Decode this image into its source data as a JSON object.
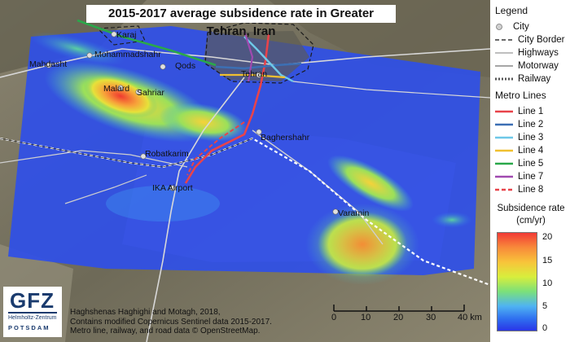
{
  "title": "2015-2017 average subsidence rate in Greater Tehran, Iran",
  "legend": {
    "heading": "Legend",
    "items": [
      "City",
      "City Border",
      "Highways",
      "Motorway",
      "Railway"
    ],
    "metro_heading": "Metro Lines",
    "metro_lines": [
      {
        "name": "Line 1",
        "color": "#e8434a"
      },
      {
        "name": "Line 2",
        "color": "#3c6fb4"
      },
      {
        "name": "Line 3",
        "color": "#6ec8e8"
      },
      {
        "name": "Line 4",
        "color": "#f0c030"
      },
      {
        "name": "Line 5",
        "color": "#2aa84a"
      },
      {
        "name": "Line 7",
        "color": "#a04ab0"
      },
      {
        "name": "Line 8",
        "color": "#e8434a"
      }
    ]
  },
  "subsidence": {
    "title_1": "Subsidence rate",
    "title_2": "(cm/yr)",
    "ticks": [
      "20",
      "15",
      "10",
      "5",
      "0"
    ]
  },
  "cities": [
    "Karaj",
    "Mohammadshahr",
    "Mahdasht",
    "Qods",
    "Tehran",
    "Malard",
    "Sahriar",
    "Baghershahr",
    "Robatkarim",
    "IKA Airport",
    "Varamin"
  ],
  "credit": {
    "line1": "Haghshenas Haghighi and Motagh, 2018,",
    "line2": "Contains modified Copernicus Sentinel data 2015-2017.",
    "line3": "Metro line, railway, and road data © OpenStreetMap."
  },
  "scale": {
    "ticks": [
      "0",
      "10",
      "20",
      "30",
      "40 km"
    ]
  },
  "logo": {
    "name": "GFZ",
    "sub1": "Helmholtz-Zentrum",
    "sub2": "POTSDAM"
  }
}
